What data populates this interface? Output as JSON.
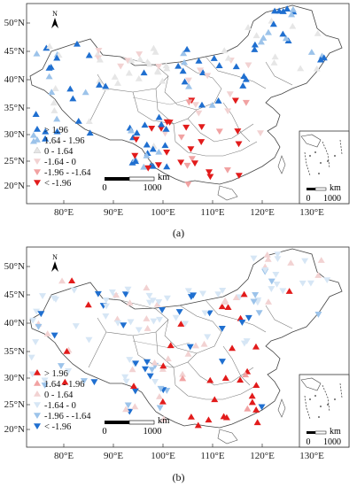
{
  "figure": {
    "panels": [
      {
        "label": "(a)",
        "lat_labels": [
          "50°N",
          "45°N",
          "40°N",
          "35°N",
          "30°N",
          "25°N",
          "20°N"
        ],
        "lon_labels": [
          "80°E",
          "90°E",
          "100°E",
          "110°E",
          "120°E",
          "130°E"
        ],
        "north_label": "N",
        "scale": {
          "zero": "0",
          "distance": "1000",
          "unit": "km"
        },
        "inset_scale": {
          "zero": "0",
          "distance": "1000",
          "unit": "km"
        },
        "legend": [
          {
            "label": "> 1.96",
            "color": "#1f6fd0",
            "symbol": "triangle-up"
          },
          {
            "label": "1.64 - 1.96",
            "color": "#9cc3ea",
            "symbol": "triangle-up"
          },
          {
            "label": "0 - 1.64",
            "color": "#e6e6e6",
            "symbol": "triangle-up"
          },
          {
            "label": "-1.64 - 0",
            "color": "#f2d2d2",
            "symbol": "triangle-down"
          },
          {
            "label": "-1.96 - -1.64",
            "color": "#f1a2a2",
            "symbol": "triangle-down"
          },
          {
            "label": "< -1.96",
            "color": "#e21b1b",
            "symbol": "triangle-down"
          }
        ]
      },
      {
        "label": "(b)",
        "lat_labels": [
          "50°N",
          "45°N",
          "40°N",
          "35°N",
          "30°N",
          "25°N",
          "20°N"
        ],
        "lon_labels": [
          "80°E",
          "90°E",
          "100°E",
          "110°E",
          "120°E",
          "130°E"
        ],
        "north_label": "N",
        "scale": {
          "zero": "0",
          "distance": "1000",
          "unit": "km"
        },
        "inset_scale": {
          "zero": "0",
          "distance": "1000",
          "unit": "km"
        },
        "legend": [
          {
            "label": "> 1.96",
            "color": "#e21b1b",
            "symbol": "triangle-up"
          },
          {
            "label": "1.64 - 1.96",
            "color": "#f1a2a2",
            "symbol": "triangle-up"
          },
          {
            "label": "0 - 1.64",
            "color": "#f2d2d2",
            "symbol": "triangle-up"
          },
          {
            "label": "-1.64 - 0",
            "color": "#d6e6f5",
            "symbol": "triangle-down"
          },
          {
            "label": "-1.96 - -1.64",
            "color": "#9cc3ea",
            "symbol": "triangle-down"
          },
          {
            "label": "< -1.96",
            "color": "#1f6fd0",
            "symbol": "triangle-down"
          }
        ]
      }
    ]
  }
}
